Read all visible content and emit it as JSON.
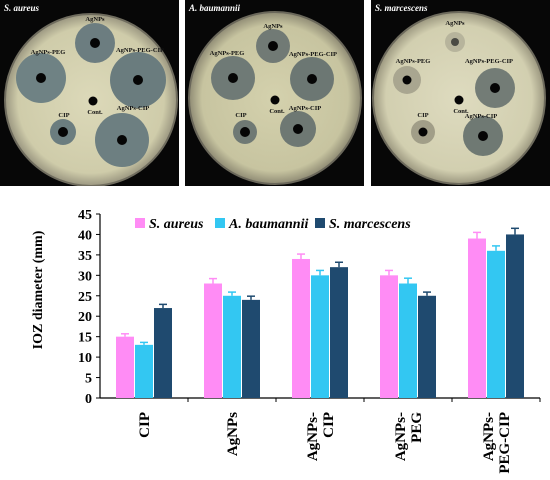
{
  "panels": [
    {
      "title": "S. aureus",
      "labels": {
        "agnps": "AgNPs",
        "agnps_peg": "AgNPs-PEG",
        "agnps_peg_cip": "AgNPs-PEG-CIP",
        "cont": "Cont.",
        "cip": "CIP",
        "agnps_cip": "AgNPs-CIP"
      }
    },
    {
      "title": "A. baumannii",
      "labels": {
        "agnps": "AgNPs",
        "agnps_peg": "AgNPs-PEG",
        "agnps_peg_cip": "AgNPs-PEG-CIP",
        "cont": "Cont.",
        "cip": "CIP",
        "agnps_cip": "AgNPs-CIP"
      }
    },
    {
      "title": "S. marcescens",
      "labels": {
        "agnps": "AgNPs",
        "agnps_peg": "AgNPs-PEG",
        "agnps_peg_cip": "AgNPs-PEG-CIP",
        "cont": "Cont.",
        "cip": "CIP",
        "agnps_cip": "AgNPs-CIP"
      }
    }
  ],
  "chart_data": {
    "type": "bar",
    "ylabel": "IOZ diameter (mm)",
    "xlabel": "",
    "ylim": [
      0,
      45
    ],
    "yticks": [
      0,
      5,
      10,
      15,
      20,
      25,
      30,
      35,
      40,
      45
    ],
    "grid": false,
    "legend_position": "top",
    "categories": [
      [
        "CIP"
      ],
      [
        "AgNPs"
      ],
      [
        "AgNPs-",
        "CIP"
      ],
      [
        "AgNPs-",
        "PEG"
      ],
      [
        "AgNPs-",
        "PEG-CIP"
      ]
    ],
    "series": [
      {
        "name": "S. aureus",
        "color": "#ff8cf5",
        "values": [
          15,
          28,
          34,
          30,
          39
        ],
        "errors": [
          0.7,
          1.2,
          1.2,
          1.2,
          1.5
        ]
      },
      {
        "name": "A. baumannii",
        "color": "#33c7f2",
        "values": [
          13,
          25,
          30,
          28,
          36
        ],
        "errors": [
          0.6,
          0.9,
          1.2,
          1.3,
          1.2
        ]
      },
      {
        "name": "S. marcescens",
        "color": "#1f4a6f",
        "values": [
          22,
          24,
          32,
          25,
          40
        ],
        "errors": [
          0.9,
          0.9,
          1.2,
          0.9,
          1.5
        ]
      }
    ]
  }
}
